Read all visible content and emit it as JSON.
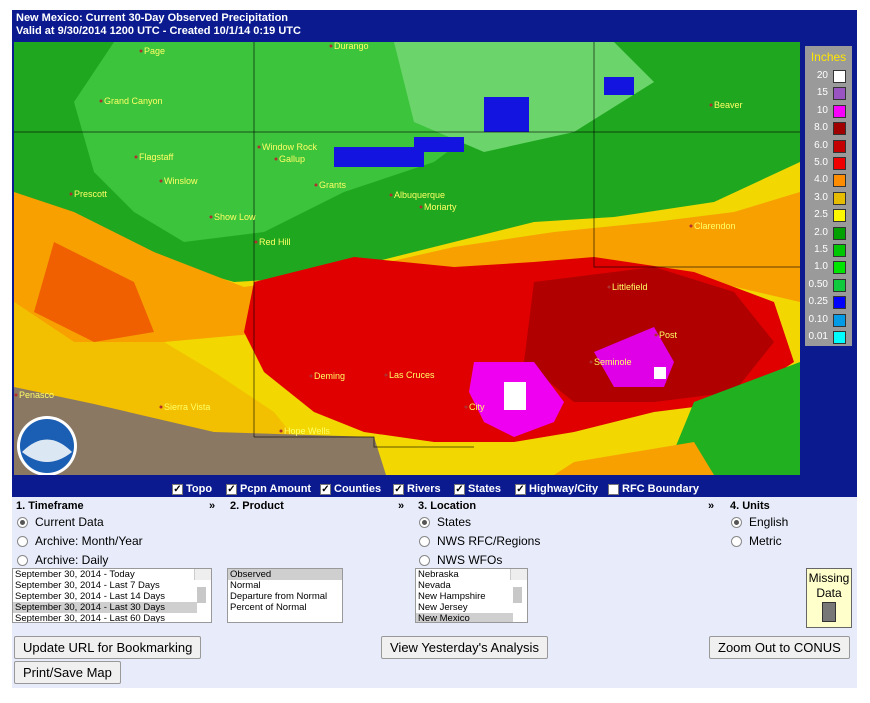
{
  "header": {
    "title": "New Mexico: Current 30-Day Observed Precipitation",
    "subtitle": "Valid at 9/30/2014 1200 UTC - Created 10/1/14 0:19 UTC"
  },
  "map": {
    "cities": [
      "Page",
      "Durango",
      "Grand Canyon",
      "Flagstaff",
      "Winslow",
      "Prescott",
      "Window Rock",
      "Gallup",
      "Grants",
      "Albuquerque",
      "Moriarty",
      "Red Hill",
      "Show Low",
      "Littlefield",
      "Post",
      "Seminole",
      "Deming",
      "Las Cruces",
      "Sierra Vista",
      "Hope Wells",
      "Penasco",
      "Clarendon",
      "Beaver",
      "City"
    ],
    "legend": {
      "title": "Inches",
      "levels": [
        {
          "label": "20",
          "color": "#ffffff"
        },
        {
          "label": "15",
          "color": "#9954c1"
        },
        {
          "label": "10",
          "color": "#f800fd"
        },
        {
          "label": "8.0",
          "color": "#a00000"
        },
        {
          "label": "6.0",
          "color": "#c40000"
        },
        {
          "label": "5.0",
          "color": "#f00000"
        },
        {
          "label": "4.0",
          "color": "#fd8c00"
        },
        {
          "label": "3.0",
          "color": "#e5bc00"
        },
        {
          "label": "2.5",
          "color": "#fdf800"
        },
        {
          "label": "2.0",
          "color": "#00a000"
        },
        {
          "label": "1.5",
          "color": "#00c800"
        },
        {
          "label": "1.0",
          "color": "#00e600"
        },
        {
          "label": "0.50",
          "color": "#0fca3c"
        },
        {
          "label": "0.25",
          "color": "#0000fd"
        },
        {
          "label": "0.10",
          "color": "#039be5"
        },
        {
          "label": "0.01",
          "color": "#00ffff"
        }
      ]
    }
  },
  "layers": [
    {
      "label": "Topo",
      "checked": true
    },
    {
      "label": "Pcpn Amount",
      "checked": true
    },
    {
      "label": "Counties",
      "checked": true
    },
    {
      "label": "Rivers",
      "checked": true
    },
    {
      "label": "States",
      "checked": true
    },
    {
      "label": "Highway/City",
      "checked": true
    },
    {
      "label": "RFC Boundary",
      "checked": false
    }
  ],
  "sections": [
    {
      "title": "1. Timeframe",
      "arrow": "»",
      "options": [
        {
          "label": "Current Data",
          "selected": true
        },
        {
          "label": "Archive: Month/Year",
          "selected": false
        },
        {
          "label": "Archive: Daily",
          "selected": false
        }
      ],
      "list": {
        "items": [
          "September 30, 2014 - Today",
          "September 30, 2014 - Last 7 Days",
          "September 30, 2014 - Last 14 Days",
          "September 30, 2014 - Last 30 Days",
          "September 30, 2014 - Last 60 Days"
        ],
        "selected": 3
      }
    },
    {
      "title": "2. Product",
      "arrow": "»",
      "options": [],
      "list": {
        "items": [
          "Observed",
          "Normal",
          "Departure from Normal",
          "Percent of Normal"
        ],
        "selected": 0
      }
    },
    {
      "title": "3. Location",
      "arrow": "»",
      "options": [
        {
          "label": "States",
          "selected": true
        },
        {
          "label": "NWS RFC/Regions",
          "selected": false
        },
        {
          "label": "NWS WFOs",
          "selected": false
        }
      ],
      "list": {
        "items": [
          "Nebraska",
          "Nevada",
          "New Hampshire",
          "New Jersey",
          "New Mexico"
        ],
        "selected": 4
      }
    },
    {
      "title": "4. Units",
      "options": [
        {
          "label": "English",
          "selected": true
        },
        {
          "label": "Metric",
          "selected": false
        }
      ]
    }
  ],
  "missing": "Missing Data",
  "buttons": [
    "Update URL for Bookmarking",
    "View Yesterday's Analysis",
    "Zoom Out to CONUS",
    "Print/Save Map"
  ]
}
